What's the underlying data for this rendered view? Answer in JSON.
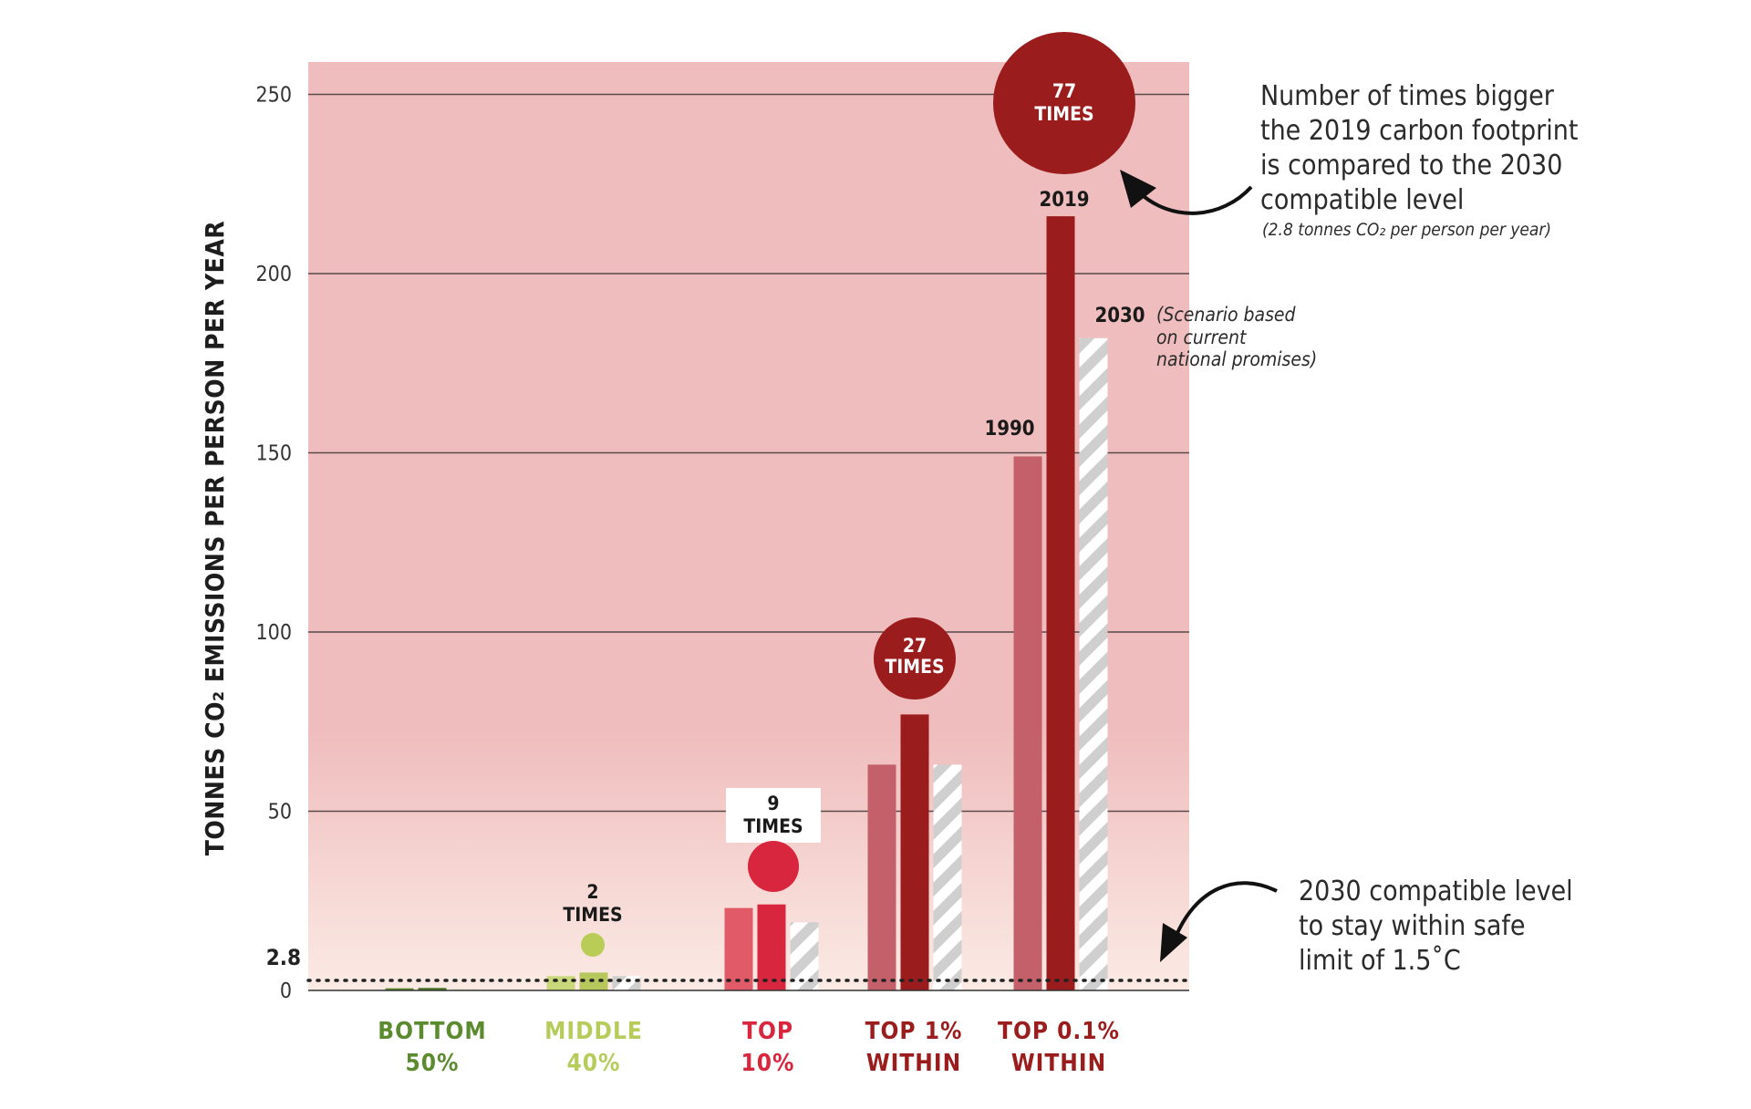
{
  "chart_data": {
    "type": "bar",
    "ylabel": "TONNES CO₂ EMISSIONS PER PERSON PER YEAR",
    "ylim": [
      0,
      260
    ],
    "yticks": [
      "0",
      "50",
      "100",
      "150",
      "200",
      "250"
    ],
    "ytick_values": [
      0,
      50,
      100,
      150,
      200,
      250
    ],
    "threshold": {
      "value": 2.8,
      "label": "2.8"
    },
    "categories": [
      {
        "line1": "BOTTOM",
        "line2": "50%",
        "color": "#5b8a2f"
      },
      {
        "line1": "MIDDLE",
        "line2": "40%",
        "color": "#b5cc5a"
      },
      {
        "line1": "TOP",
        "line2": "10%",
        "color": "#d7263d"
      },
      {
        "line1": "TOP 1%",
        "line2": "WITHIN",
        "color": "#9b1c1c"
      },
      {
        "line1": "TOP 0.1%",
        "line2": "WITHIN",
        "color": "#9b1c1c"
      }
    ],
    "series": [
      {
        "name": "1990",
        "values": [
          0.6,
          4.0,
          23,
          63,
          149
        ]
      },
      {
        "name": "2019",
        "values": [
          0.7,
          5.0,
          24,
          77,
          216
        ]
      },
      {
        "name": "2030",
        "values": [
          0.4,
          4.0,
          19,
          63,
          182
        ]
      }
    ],
    "bar_colors": [
      [
        "#5b8a2f",
        "#4a7526",
        "#dbe4c2"
      ],
      [
        "#c9d87a",
        "#b6c75c",
        "#d8d8d8"
      ],
      [
        "#e05a67",
        "#d7263d",
        "#d8d8d8"
      ],
      [
        "#c4606a",
        "#9b1c1c",
        "#d8d8d8"
      ],
      [
        "#c4606a",
        "#9b1c1c",
        "#d8d8d8"
      ]
    ],
    "multiples": [
      {
        "category": "MIDDLE 40%",
        "times": "2",
        "label": "TIMES",
        "color": "#b9cc55"
      },
      {
        "category": "TOP 10%",
        "times": "9",
        "label": "TIMES",
        "color": "#d7263d"
      },
      {
        "category": "TOP 1% WITHIN",
        "times": "27",
        "label": "TIMES",
        "color": "#9b1c1c"
      },
      {
        "category": "TOP 0.1% WITHIN",
        "times": "77",
        "label": "TIMES",
        "color": "#9b1c1c"
      }
    ]
  },
  "annotations": {
    "times_note": {
      "lines": [
        "Number of times bigger",
        "the 2019 carbon footprint",
        "is compared to the 2030",
        "compatible level"
      ],
      "sub": "(2.8 tonnes CO₂ per person per year)"
    },
    "scenario_note": {
      "lines": [
        "(Scenario based",
        "on current",
        "national promises)"
      ]
    },
    "level_note": {
      "lines": [
        "2030 compatible level",
        "to stay within safe",
        "limit of 1.5˚C"
      ]
    }
  },
  "colors": {
    "plot_top": "#efbdbd",
    "plot_bottom": "#fbeae4",
    "grid": "#5a4a4a",
    "arrow": "#111111"
  }
}
